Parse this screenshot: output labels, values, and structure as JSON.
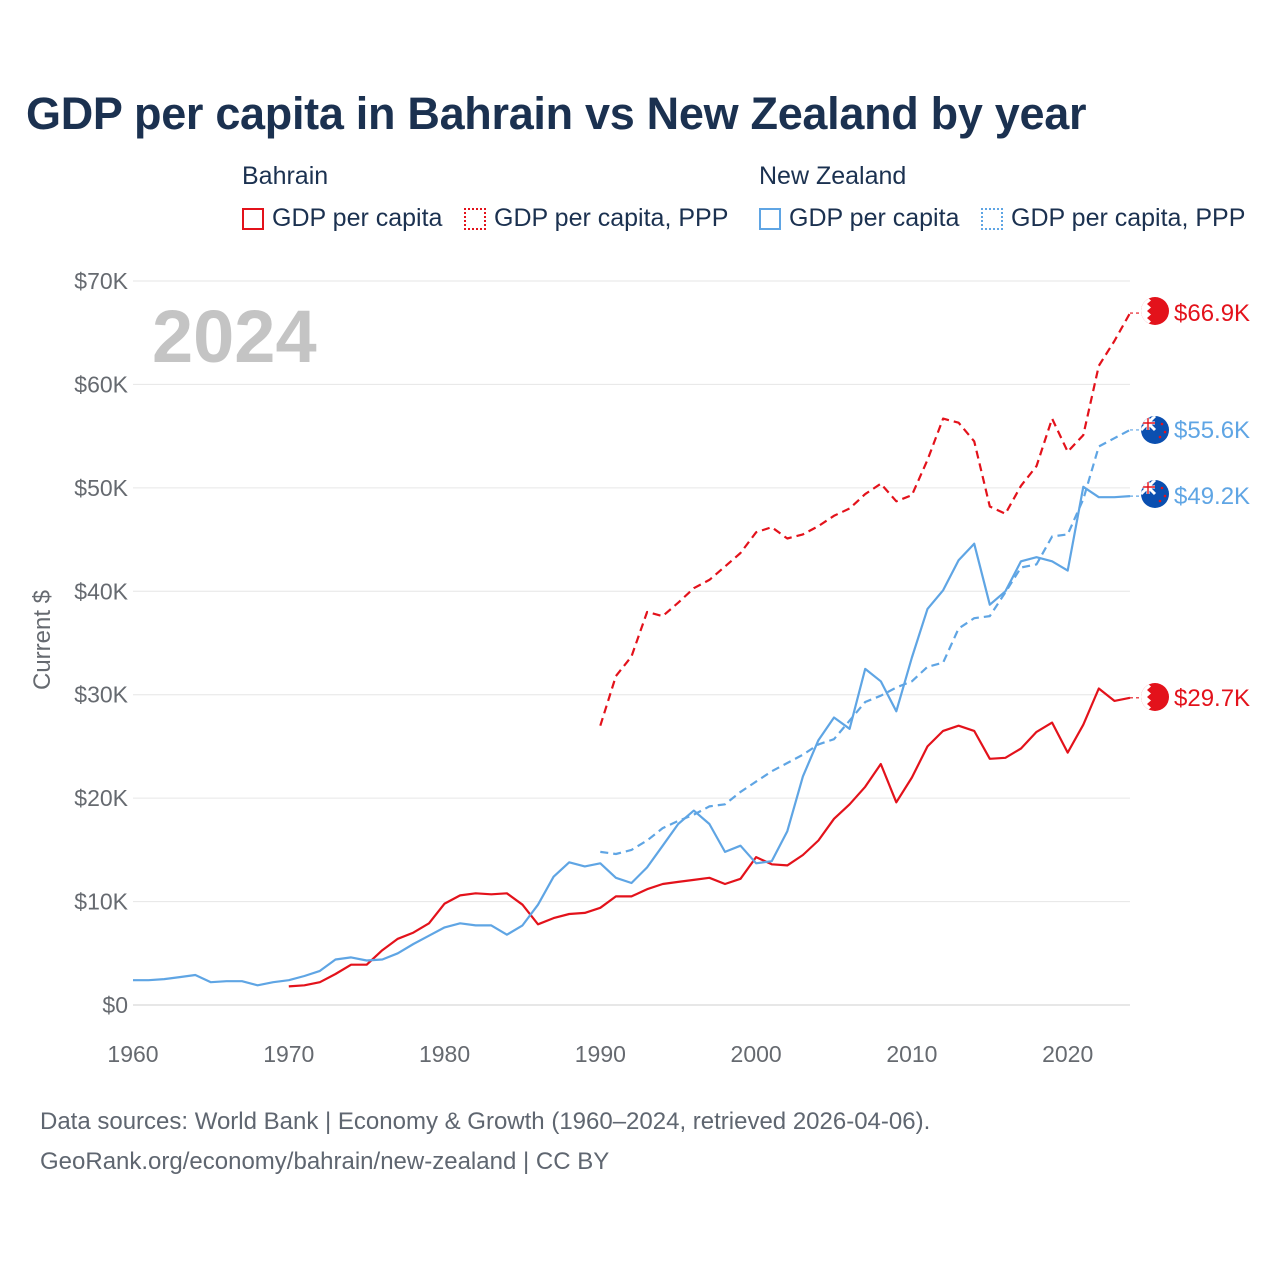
{
  "header": {
    "title": "GDP per capita in Bahrain vs New Zealand by year"
  },
  "legend": {
    "groups": [
      {
        "name": "Bahrain",
        "items": [
          "GDP per capita",
          "GDP per capita, PPP"
        ]
      },
      {
        "name": "New Zealand",
        "items": [
          "GDP per capita",
          "GDP per capita, PPP"
        ]
      }
    ]
  },
  "colors": {
    "bahrain": "#e3121b",
    "new_zealand": "#5fa5e4",
    "grid": "#e6e6e6"
  },
  "footer": {
    "line1": "Data sources: World Bank | Economy & Growth (1960–2024, retrieved 2026-04-06).",
    "line2": "GeoRank.org/economy/bahrain/new-zealand | CC BY"
  },
  "chart_data": {
    "type": "line",
    "title": "GDP per capita in Bahrain vs New Zealand by year",
    "xlabel": "",
    "ylabel": "Current $",
    "xlim": [
      1960,
      2024
    ],
    "ylim": [
      0,
      70000
    ],
    "x_ticks": [
      1960,
      1970,
      1980,
      1990,
      2000,
      2010,
      2020
    ],
    "y_ticks": [
      0,
      10000,
      20000,
      30000,
      40000,
      50000,
      60000,
      70000
    ],
    "y_tick_labels": [
      "$0",
      "$10K",
      "$20K",
      "$30K",
      "$40K",
      "$50K",
      "$60K",
      "$70K"
    ],
    "grid": true,
    "year_watermark": "2024",
    "series": [
      {
        "name": "Bahrain GDP per capita",
        "country": "Bahrain",
        "style": "solid",
        "color": "#e3121b",
        "end_label": "$29.7K",
        "x_start": 1970,
        "values": [
          1800,
          1900,
          2200,
          3000,
          3900,
          3900,
          5300,
          6400,
          7000,
          7900,
          9800,
          10600,
          10800,
          10700,
          10800,
          9700,
          7800,
          8400,
          8800,
          8900,
          9400,
          10500,
          10500,
          11200,
          11700,
          11900,
          12100,
          12300,
          11700,
          12200,
          14300,
          13600,
          13500,
          14500,
          15900,
          18000,
          19400,
          21100,
          23300,
          19600,
          22000,
          25000,
          26500,
          27000,
          26500,
          23800,
          23900,
          24800,
          26400,
          27300,
          24400,
          27100,
          30600,
          29400,
          29700
        ]
      },
      {
        "name": "Bahrain GDP per capita, PPP",
        "country": "Bahrain",
        "style": "dashed",
        "color": "#e3121b",
        "end_label": "$66.9K",
        "x_start": 1990,
        "values": [
          27000,
          31800,
          33700,
          38000,
          37600,
          38900,
          40300,
          41100,
          42400,
          43700,
          45700,
          46200,
          45100,
          45500,
          46300,
          47300,
          48000,
          49400,
          50400,
          48700,
          49300,
          52700,
          56700,
          56300,
          54500,
          48200,
          47500,
          50200,
          52100,
          56700,
          53500,
          55100,
          61800,
          64200,
          66900
        ]
      },
      {
        "name": "New Zealand GDP per capita",
        "country": "New Zealand",
        "style": "solid",
        "color": "#5fa5e4",
        "end_label": "$49.2K",
        "x_start": 1960,
        "values": [
          2400,
          2400,
          2500,
          2700,
          2900,
          2200,
          2300,
          2300,
          1900,
          2200,
          2400,
          2800,
          3300,
          4400,
          4600,
          4300,
          4400,
          5000,
          5900,
          6700,
          7500,
          7900,
          7700,
          7700,
          6800,
          7700,
          9700,
          12400,
          13800,
          13400,
          13700,
          12300,
          11800,
          13300,
          15400,
          17500,
          18800,
          17500,
          14800,
          15400,
          13700,
          13900,
          16800,
          22100,
          25600,
          27800,
          26700,
          32500,
          31300,
          28400,
          33600,
          38300,
          40100,
          43000,
          44600,
          38700,
          40000,
          42900,
          43300,
          42900,
          42000,
          50100,
          49100,
          49100,
          49200
        ]
      },
      {
        "name": "New Zealand GDP per capita, PPP",
        "country": "New Zealand",
        "style": "dashed",
        "color": "#5fa5e4",
        "end_label": "$55.6K",
        "x_start": 1990,
        "values": [
          14800,
          14600,
          15000,
          15900,
          17100,
          17800,
          18400,
          19200,
          19400,
          20600,
          21600,
          22600,
          23400,
          24200,
          25200,
          25700,
          27500,
          29300,
          29900,
          30700,
          31300,
          32700,
          33100,
          36400,
          37400,
          37600,
          39900,
          42300,
          42600,
          45300,
          45500,
          48900,
          54000,
          54800,
          55600
        ]
      }
    ]
  }
}
